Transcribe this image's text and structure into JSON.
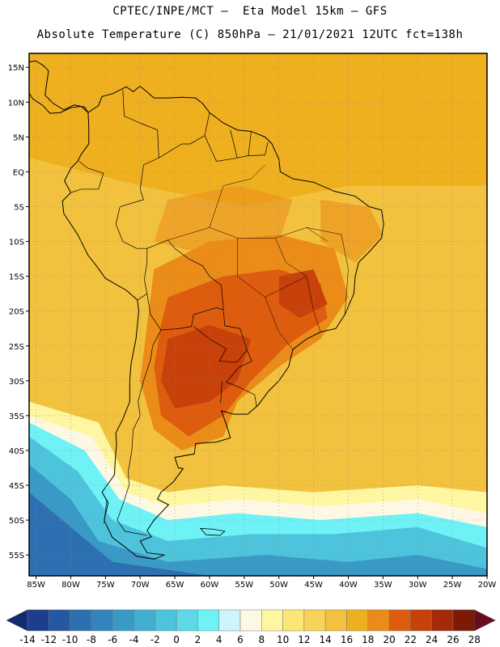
{
  "header": {
    "line1": "CPTEC/INPE/MCT –  Eta Model 15km – GFS",
    "line2": "Absolute Temperature (C) 850hPa – 21/01/2021 12UTC fct=138h"
  },
  "map": {
    "lon_range": [
      -86,
      -20
    ],
    "lat_range": [
      -58,
      17
    ],
    "lat_labels": [
      "15N",
      "10N",
      "5N",
      "EQ",
      "5S",
      "10S",
      "15S",
      "20S",
      "25S",
      "30S",
      "35S",
      "40S",
      "45S",
      "50S",
      "55S"
    ],
    "lat_values": [
      15,
      10,
      5,
      0,
      -5,
      -10,
      -15,
      -20,
      -25,
      -30,
      -35,
      -40,
      -45,
      -50,
      -55
    ],
    "lon_labels": [
      "85W",
      "80W",
      "75W",
      "70W",
      "65W",
      "60W",
      "55W",
      "50W",
      "45W",
      "40W",
      "35W",
      "30W",
      "25W",
      "20W"
    ],
    "lon_values": [
      -85,
      -80,
      -75,
      -70,
      -65,
      -60,
      -55,
      -50,
      -45,
      -40,
      -35,
      -30,
      -25,
      -20
    ],
    "grid": "dotted"
  },
  "colorbar": {
    "labels": [
      "-14",
      "-12",
      "-10",
      "-8",
      "-6",
      "-4",
      "-2",
      "0",
      "2",
      "4",
      "6",
      "8",
      "10",
      "12",
      "14",
      "16",
      "18",
      "20",
      "22",
      "24",
      "26",
      "28"
    ],
    "colors": [
      "#1c3e8c",
      "#2458a0",
      "#2d70b2",
      "#3384bc",
      "#3a9ac6",
      "#42aed0",
      "#4ec4dc",
      "#5cd8e8",
      "#6ef2f6",
      "#ccf6fa",
      "#fdf8e4",
      "#fef6a0",
      "#fbe678",
      "#f6d45a",
      "#f2c23e",
      "#efb020",
      "#eb8c18",
      "#de5c0e",
      "#c8400a",
      "#a42a08",
      "#7c1a06"
    ],
    "arrow_left": "#142a6e",
    "arrow_right": "#6a0c1e"
  }
}
